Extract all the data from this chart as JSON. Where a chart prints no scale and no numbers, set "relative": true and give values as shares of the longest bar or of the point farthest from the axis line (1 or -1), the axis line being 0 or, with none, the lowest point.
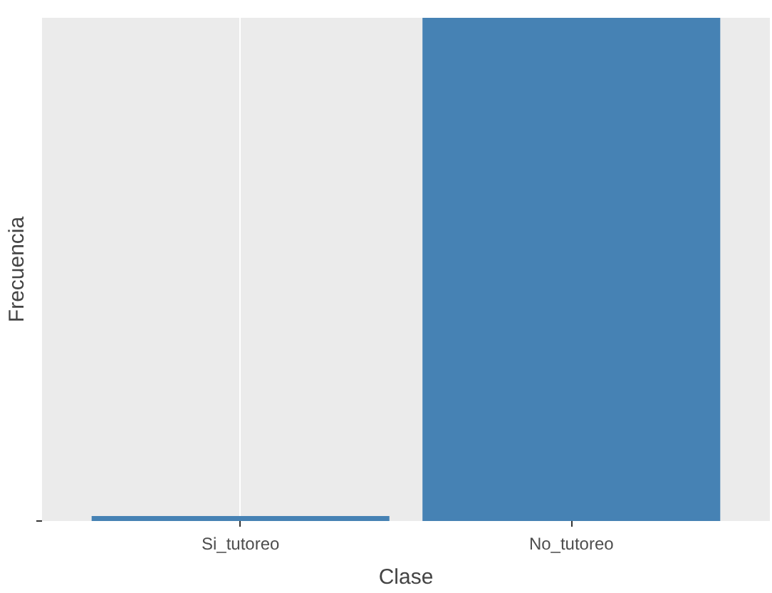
{
  "chart_data": {
    "type": "bar",
    "xlabel": "Clase",
    "ylabel": "Frecuencia",
    "categories": [
      "Si_tutoreo",
      "No_tutoreo"
    ],
    "values": [
      0.01,
      1
    ],
    "color": "#4682b4",
    "relative": true,
    "grid": "x"
  }
}
